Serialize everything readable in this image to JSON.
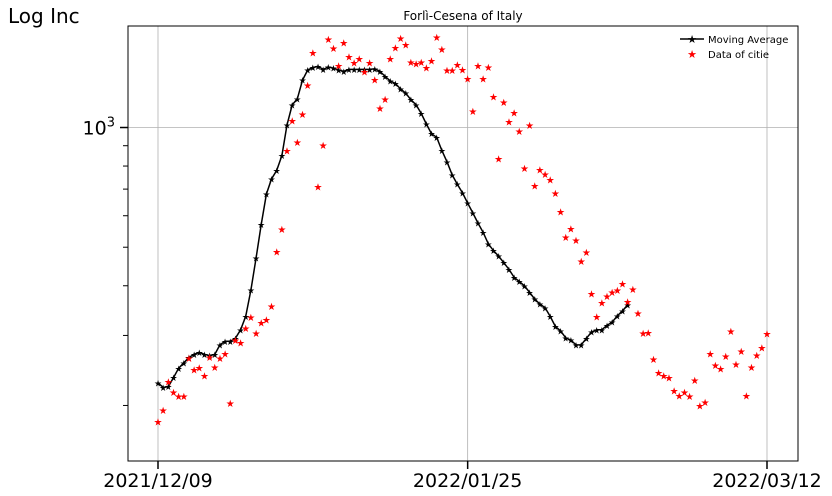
{
  "chart_data": {
    "type": "scatter",
    "title": "Forlì-Cesena of Italy",
    "ylabel": "Log Inc",
    "yscale": "log",
    "ylim": [
      145,
      1800
    ],
    "x_ticks": [
      "2021/12/09",
      "2022/01/25",
      "2022/03/12"
    ],
    "y_tick_major": {
      "value": 1000,
      "label_base": "10",
      "label_exp": "3"
    },
    "grid": true,
    "legend_position": "top-right",
    "colors": {
      "moving_average": "#000000",
      "data": "#ff0000"
    },
    "series": [
      {
        "name": "Moving Average",
        "style": "line-with-star-markers",
        "values": [
          228,
          222,
          223,
          235,
          248,
          256,
          264,
          269,
          272,
          269,
          267,
          269,
          284,
          290,
          290,
          295,
          310,
          335,
          390,
          470,
          570,
          680,
          742,
          780,
          850,
          1015,
          1140,
          1180,
          1315,
          1395,
          1415,
          1425,
          1400,
          1420,
          1410,
          1395,
          1385,
          1400,
          1400,
          1400,
          1400,
          1400,
          1405,
          1385,
          1345,
          1310,
          1290,
          1250,
          1220,
          1175,
          1140,
          1085,
          1020,
          965,
          945,
          875,
          820,
          760,
          720,
          685,
          645,
          610,
          575,
          545,
          510,
          490,
          475,
          457,
          440,
          420,
          410,
          400,
          385,
          370,
          360,
          352,
          335,
          316,
          308,
          296,
          292,
          284,
          284,
          295,
          306,
          310,
          310,
          318,
          324,
          336,
          346,
          358
        ]
      },
      {
        "name": "Data of citie",
        "style": "star-markers",
        "values": [
          182,
          195,
          230,
          216,
          211,
          211,
          263,
          246,
          249,
          238,
          265,
          250,
          263,
          270,
          203,
          292,
          288,
          313,
          334,
          304,
          323,
          329,
          356,
          488,
          555,
          875,
          1040,
          920,
          1080,
          1280,
          1545,
          710,
          905,
          1670,
          1585,
          1430,
          1635,
          1510,
          1455,
          1490,
          1385,
          1455,
          1320,
          1120,
          1180,
          1490,
          1590,
          1680,
          1615,
          1460,
          1450,
          1460,
          1415,
          1475,
          1690,
          1575,
          1395,
          1395,
          1440,
          1400,
          1330,
          1100,
          1430,
          1330,
          1420,
          1195,
          835,
          1160,
          1035,
          1090,
          980,
          790,
          1015,
          715,
          785,
          765,
          740,
          685,
          615,
          530,
          558,
          522,
          462,
          486,
          383,
          335,
          363,
          377,
          386,
          390,
          405,
          365,
          392,
          342,
          304,
          305,
          262,
          242,
          238,
          235,
          218,
          212,
          216,
          211,
          232,
          200,
          204,
          270,
          253,
          248,
          266,
          308,
          254,
          274,
          212,
          250,
          268,
          280,
          303
        ]
      }
    ]
  }
}
